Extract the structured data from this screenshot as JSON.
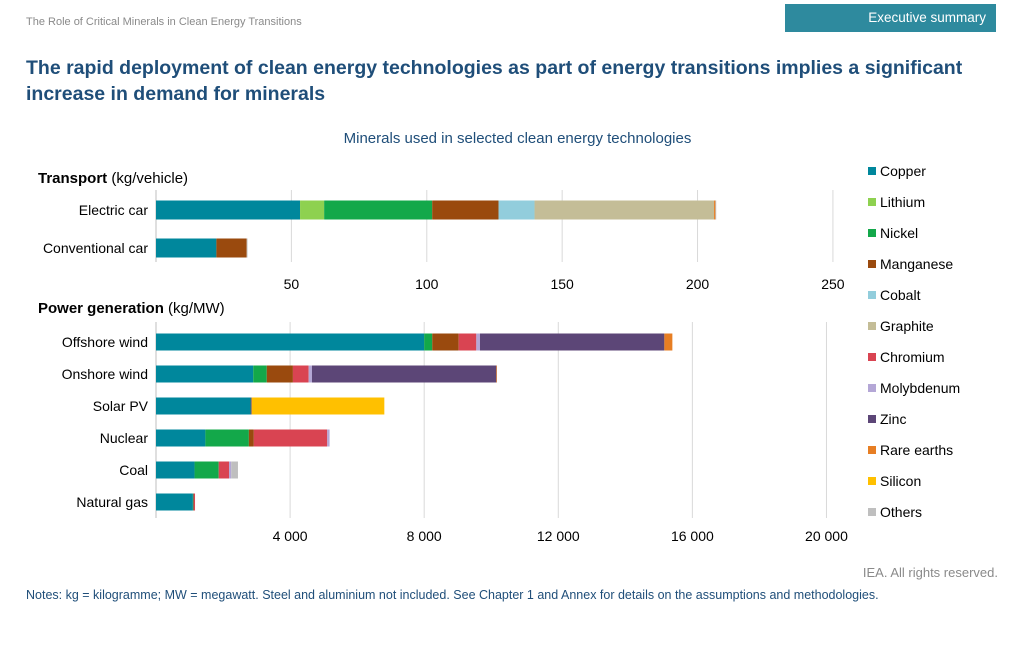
{
  "header": {
    "report_title": "The Role of Critical Minerals in Clean Energy Transitions",
    "section_badge": "Executive summary",
    "headline": "The rapid deployment of clean energy technologies as part of energy transitions implies a significant increase in demand for minerals"
  },
  "footer": {
    "copyright": "IEA. All rights reserved.",
    "notes": "Notes: kg = kilogramme; MW = megawatt. Steel and aluminium not included. See Chapter 1 and Annex for details on the assumptions and methodologies."
  },
  "chart_data": {
    "type": "bar",
    "orientation": "horizontal",
    "stacked": true,
    "title": "Minerals used in selected clean energy technologies",
    "legend_position": "right",
    "legend": [
      {
        "name": "Copper",
        "color": "#00879c"
      },
      {
        "name": "Lithium",
        "color": "#8ed150"
      },
      {
        "name": "Nickel",
        "color": "#13a84a"
      },
      {
        "name": "Manganese",
        "color": "#9a4a0e"
      },
      {
        "name": "Cobalt",
        "color": "#92cddc"
      },
      {
        "name": "Graphite",
        "color": "#c4bd97"
      },
      {
        "name": "Chromium",
        "color": "#d94452"
      },
      {
        "name": "Molybdenum",
        "color": "#b4a7d6"
      },
      {
        "name": "Zinc",
        "color": "#5c4677"
      },
      {
        "name": "Rare earths",
        "color": "#e77e23"
      },
      {
        "name": "Silicon",
        "color": "#ffc000"
      },
      {
        "name": "Others",
        "color": "#bfbfbf"
      }
    ],
    "panels": [
      {
        "title_bold": "Transport",
        "title_unit": "(kg/vehicle)",
        "xlim": [
          0,
          260
        ],
        "xticks": [
          50,
          100,
          150,
          200,
          250
        ],
        "tick_labels": [
          "50",
          "100",
          "150",
          "200",
          "250"
        ],
        "grid": true,
        "categories": [
          "Electric car",
          "Conventional car"
        ],
        "series": [
          {
            "name": "Copper",
            "values": [
              53.2,
              22.3
            ]
          },
          {
            "name": "Lithium",
            "values": [
              8.9,
              0
            ]
          },
          {
            "name": "Nickel",
            "values": [
              39.9,
              0
            ]
          },
          {
            "name": "Manganese",
            "values": [
              24.5,
              11.2
            ]
          },
          {
            "name": "Cobalt",
            "values": [
              13.3,
              0
            ]
          },
          {
            "name": "Graphite",
            "values": [
              66.3,
              0
            ]
          },
          {
            "name": "Chromium",
            "values": [
              0,
              0
            ]
          },
          {
            "name": "Molybdenum",
            "values": [
              0,
              0
            ]
          },
          {
            "name": "Zinc",
            "values": [
              0,
              0
            ]
          },
          {
            "name": "Rare earths",
            "values": [
              0.5,
              0
            ]
          },
          {
            "name": "Silicon",
            "values": [
              0,
              0
            ]
          },
          {
            "name": "Others",
            "values": [
              0.3,
              0.3
            ]
          }
        ]
      },
      {
        "title_bold": "Power generation",
        "title_unit": "(kg/MW)",
        "xlim": [
          0,
          21000
        ],
        "xticks": [
          4000,
          8000,
          12000,
          16000,
          20000
        ],
        "tick_labels": [
          "4 000",
          "8 000",
          "12 000",
          "16 000",
          "20 000"
        ],
        "grid": true,
        "categories": [
          "Offshore wind",
          "Onshore wind",
          "Solar PV",
          "Nuclear",
          "Coal",
          "Natural gas"
        ],
        "series": [
          {
            "name": "Copper",
            "values": [
              8000,
              2900,
              2822,
              1473,
              1150,
              1100
            ]
          },
          {
            "name": "Lithium",
            "values": [
              0,
              0,
              0,
              0,
              0,
              0
            ]
          },
          {
            "name": "Nickel",
            "values": [
              240,
              404,
              1,
              1297,
              721,
              16
            ]
          },
          {
            "name": "Manganese",
            "values": [
              790,
              780,
              0,
              148,
              0,
              0
            ]
          },
          {
            "name": "Cobalt",
            "values": [
              0,
              0,
              0,
              0,
              0,
              0
            ]
          },
          {
            "name": "Graphite",
            "values": [
              0,
              0,
              0,
              0,
              0,
              0
            ]
          },
          {
            "name": "Chromium",
            "values": [
              525,
              470,
              0,
              2190,
              308,
              48
            ]
          },
          {
            "name": "Molybdenum",
            "values": [
              109,
              99,
              0,
              70,
              66,
              0
            ]
          },
          {
            "name": "Zinc",
            "values": [
              5500,
              5500,
              30,
              0,
              0,
              0
            ]
          },
          {
            "name": "Rare earths",
            "values": [
              239,
              14,
              0,
              0,
              0,
              0
            ]
          },
          {
            "name": "Silicon",
            "values": [
              0,
              0,
              3958,
              0,
              0,
              0
            ]
          },
          {
            "name": "Others",
            "values": [
              0,
              0,
              0,
              0,
              200,
              0
            ]
          }
        ]
      }
    ]
  }
}
